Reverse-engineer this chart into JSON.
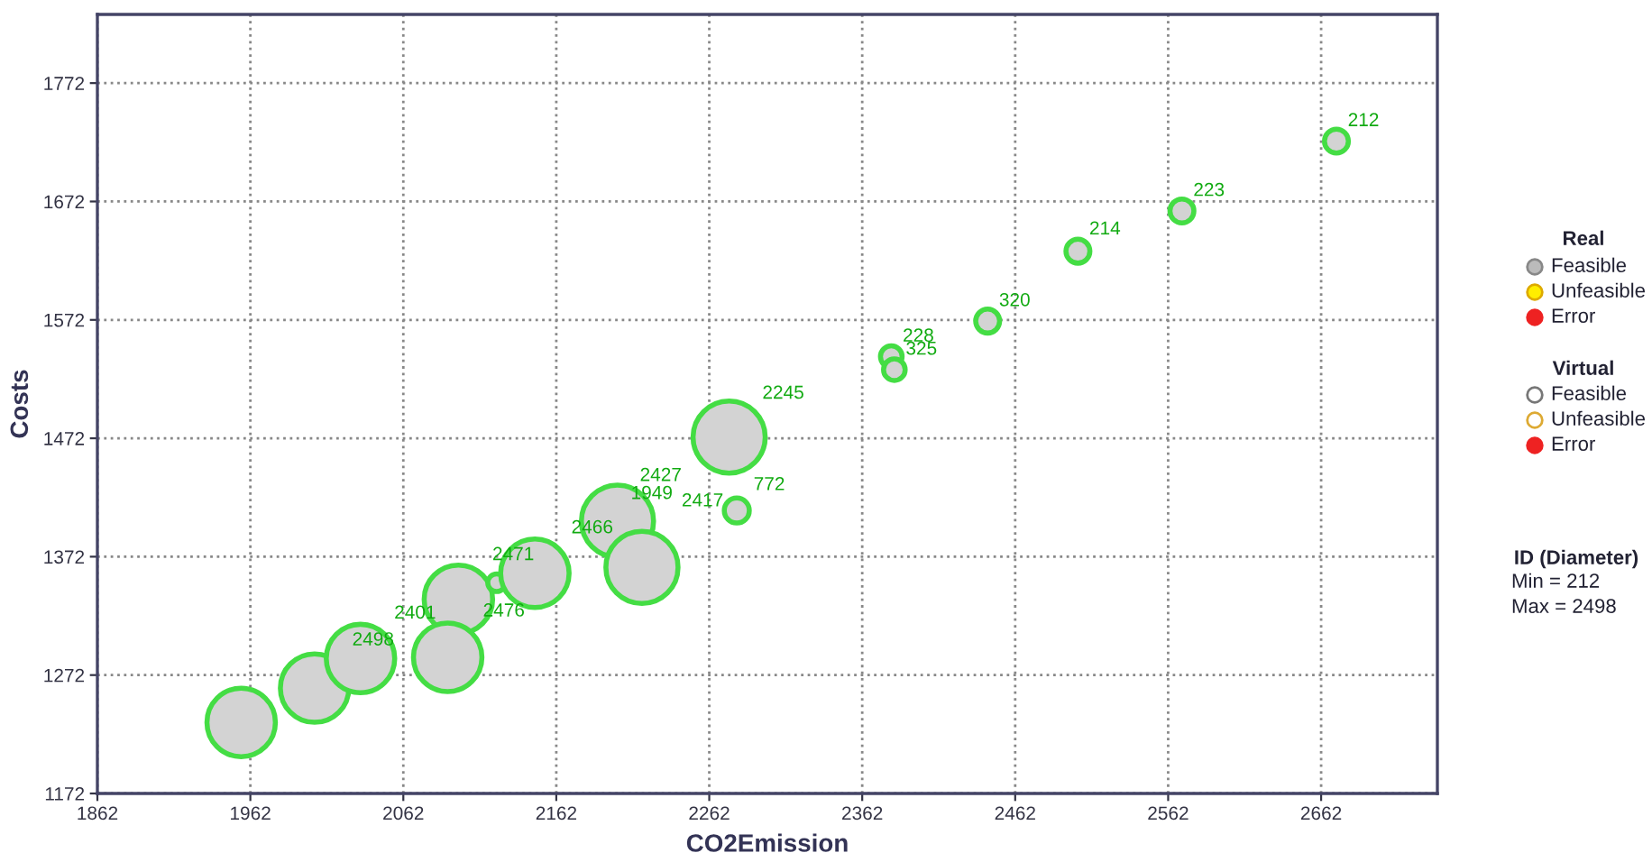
{
  "chart_data": {
    "type": "bubble",
    "xlabel": "CO2Emission",
    "ylabel": "Costs",
    "x": [
      1956,
      2004,
      2034,
      2098,
      2091,
      2123,
      2148,
      2202,
      2218,
      2275,
      2280,
      2381,
      2383,
      2444,
      2503,
      2571,
      2672
    ],
    "series": [
      {
        "color": "#d3d3d3",
        "values": [
          1232,
          1261,
          1286,
          1336,
          1287,
          1350,
          1358,
          1402,
          1363,
          1473,
          1411,
          1541,
          1530,
          1571,
          1630,
          1664,
          1723
        ],
        "sizes": [
          0.9,
          0.9,
          0.9,
          0.9,
          0.9,
          0.06,
          0.9,
          1,
          1,
          1,
          0.12,
          0.09,
          0.09,
          0.11,
          0.11,
          0.11,
          0.11
        ]
      }
    ],
    "xlim": [
      1862,
      2738
    ],
    "ylim": [
      1172,
      1830
    ],
    "xticks": [
      1862,
      1962,
      2062,
      2162,
      2262,
      2362,
      2462,
      2562,
      2662
    ],
    "yticks": [
      1172,
      1272,
      1372,
      1472,
      1572,
      1672,
      1772
    ],
    "grid": true,
    "annotations": [
      {
        "text": "2498",
        "x": 2034,
        "y": 1286
      },
      {
        "text": "2401",
        "x": 2098,
        "y": 1336
      },
      {
        "text": "2476",
        "x": 2123,
        "y": 1350
      },
      {
        "text": "2471",
        "x": 2148,
        "y": 1358
      },
      {
        "text": "2466",
        "x": 2202,
        "y": 1402
      },
      {
        "text": "2427",
        "x": 2202,
        "y": 1402
      },
      {
        "text": "1949",
        "x": 2202,
        "y": 1402
      },
      {
        "text": "2417",
        "x": 2280,
        "y": 1411
      },
      {
        "text": "772",
        "x": 2280,
        "y": 1411
      },
      {
        "text": "2245",
        "x": 2275,
        "y": 1473
      },
      {
        "text": "228",
        "x": 2381,
        "y": 1541
      },
      {
        "text": "325",
        "x": 2383,
        "y": 1530
      },
      {
        "text": "320",
        "x": 2444,
        "y": 1571
      },
      {
        "text": "214",
        "x": 2503,
        "y": 1630
      },
      {
        "text": "223",
        "x": 2571,
        "y": 1664
      },
      {
        "text": "212",
        "x": 2672,
        "y": 1723
      },
      "Real",
      "Feasible",
      "Unfeasible",
      "Error",
      "Virtual",
      "Feasible",
      "Unfeasible",
      "Error",
      "ID (Diameter)",
      "Min = 212",
      "Max = 2498"
    ]
  }
}
